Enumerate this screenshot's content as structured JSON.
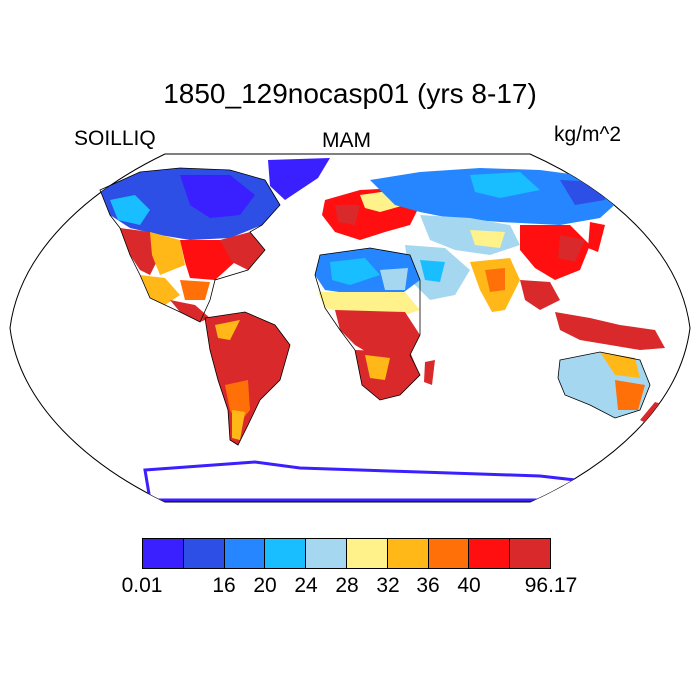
{
  "title": "1850_129nocasp01 (yrs 8-17)",
  "variable": "SOILLIQ",
  "season": "MAM",
  "units": "kg/m^2",
  "colorbar": {
    "colors": [
      "#3a1fff",
      "#2d4fe6",
      "#2586ff",
      "#18beff",
      "#a5d8f0",
      "#fff28a",
      "#ffb818",
      "#ff7008",
      "#ff0f0f",
      "#d9292b"
    ],
    "tick_labels": [
      "0.01",
      "16",
      "20",
      "24",
      "28",
      "32",
      "36",
      "40",
      "96.17"
    ]
  },
  "map": {
    "projection": "Robinson",
    "ocean_color": "#ffffff",
    "coastline_color": "#000000"
  }
}
